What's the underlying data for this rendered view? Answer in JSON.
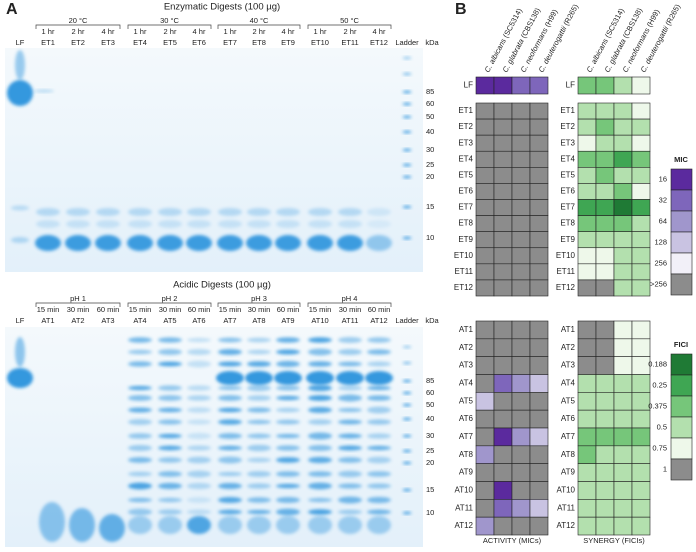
{
  "panel_a": {
    "label": "A",
    "gels": [
      {
        "title": "Enzymatic Digests (100 µg)",
        "lf": "LF",
        "ladder": "Ladder",
        "unit": "kDa",
        "groups": [
          {
            "label": "20 °C",
            "times": [
              "1 hr",
              "2 hr",
              "4 hr"
            ],
            "lanes": [
              "ET1",
              "ET2",
              "ET3"
            ]
          },
          {
            "label": "30 °C",
            "times": [
              "1 hr",
              "2 hr",
              "4 hr"
            ],
            "lanes": [
              "ET4",
              "ET5",
              "ET6"
            ]
          },
          {
            "label": "40 °C",
            "times": [
              "1 hr",
              "2 hr",
              "4 hr"
            ],
            "lanes": [
              "ET7",
              "ET8",
              "ET9"
            ]
          },
          {
            "label": "50 °C",
            "times": [
              "1 hr",
              "2 hr",
              "4 hr"
            ],
            "lanes": [
              "ET10",
              "ET11",
              "ET12"
            ]
          }
        ],
        "markers": [
          85,
          60,
          50,
          40,
          30,
          25,
          20,
          15,
          10
        ]
      },
      {
        "title": "Acidic Digests (100 µg)",
        "lf": "LF",
        "ladder": "Ladder",
        "unit": "kDa",
        "groups": [
          {
            "label": "pH 1",
            "times": [
              "15 min",
              "30 min",
              "60 min"
            ],
            "lanes": [
              "AT1",
              "AT2",
              "AT3"
            ]
          },
          {
            "label": "pH 2",
            "times": [
              "15 min",
              "30 min",
              "60 min"
            ],
            "lanes": [
              "AT4",
              "AT5",
              "AT6"
            ]
          },
          {
            "label": "pH 3",
            "times": [
              "15 min",
              "30 min",
              "60 min"
            ],
            "lanes": [
              "AT7",
              "AT8",
              "AT9"
            ]
          },
          {
            "label": "pH 4",
            "times": [
              "15 min",
              "30 min",
              "60 min"
            ],
            "lanes": [
              "AT10",
              "AT11",
              "AT12"
            ]
          }
        ],
        "markers": [
          85,
          60,
          50,
          40,
          30,
          25,
          20,
          15,
          10
        ]
      }
    ]
  },
  "panel_b": {
    "label": "B",
    "columns": [
      {
        "species": "C. albicans",
        "strain": "(SC5314)"
      },
      {
        "species": "C. glabrata",
        "strain": "(CBS138)"
      },
      {
        "species": "C. neoformans",
        "strain": "(H99)"
      },
      {
        "species": "C. deuterogattii",
        "strain": "(R265)"
      }
    ],
    "rows": [
      [
        "LF"
      ],
      [
        "ET1",
        "ET2",
        "ET3",
        "ET4",
        "ET5",
        "ET6",
        "ET7",
        "ET8",
        "ET9",
        "ET10",
        "ET11",
        "ET12"
      ],
      [
        "AT1",
        "AT2",
        "AT3",
        "AT4",
        "AT5",
        "AT6",
        "AT7",
        "AT8",
        "AT9",
        "AT10",
        "AT11",
        "AT12"
      ]
    ],
    "activity": {
      "footer": "ACTIVITY (MICs)",
      "values": [
        [
          [
            16,
            16,
            32,
            32
          ]
        ],
        [
          [
            ">256",
            ">256",
            ">256",
            ">256"
          ],
          [
            ">256",
            ">256",
            ">256",
            ">256"
          ],
          [
            ">256",
            ">256",
            ">256",
            ">256"
          ],
          [
            ">256",
            ">256",
            ">256",
            ">256"
          ],
          [
            ">256",
            ">256",
            ">256",
            ">256"
          ],
          [
            ">256",
            ">256",
            ">256",
            ">256"
          ],
          [
            ">256",
            ">256",
            ">256",
            ">256"
          ],
          [
            ">256",
            ">256",
            ">256",
            ">256"
          ],
          [
            ">256",
            ">256",
            ">256",
            ">256"
          ],
          [
            ">256",
            ">256",
            ">256",
            ">256"
          ],
          [
            ">256",
            ">256",
            ">256",
            ">256"
          ],
          [
            ">256",
            ">256",
            ">256",
            ">256"
          ]
        ],
        [
          [
            ">256",
            ">256",
            ">256",
            ">256"
          ],
          [
            ">256",
            ">256",
            ">256",
            ">256"
          ],
          [
            ">256",
            ">256",
            ">256",
            ">256"
          ],
          [
            ">256",
            32,
            64,
            128
          ],
          [
            128,
            ">256",
            ">256",
            ">256"
          ],
          [
            ">256",
            ">256",
            ">256",
            ">256"
          ],
          [
            ">256",
            16,
            64,
            128
          ],
          [
            64,
            ">256",
            ">256",
            ">256"
          ],
          [
            ">256",
            ">256",
            ">256",
            ">256"
          ],
          [
            ">256",
            16,
            ">256",
            ">256"
          ],
          [
            ">256",
            32,
            64,
            128
          ],
          [
            64,
            ">256",
            ">256",
            ">256"
          ]
        ]
      ]
    },
    "synergy": {
      "footer": "SYNERGY (FICIs)",
      "values": [
        [
          [
            0.375,
            0.375,
            0.5,
            0.75
          ]
        ],
        [
          [
            0.5,
            0.5,
            0.5,
            0.75
          ],
          [
            0.5,
            0.375,
            0.5,
            0.5
          ],
          [
            0.75,
            0.5,
            0.5,
            0.75
          ],
          [
            0.375,
            0.375,
            0.25,
            0.375
          ],
          [
            0.5,
            0.375,
            0.5,
            0.5
          ],
          [
            0.5,
            0.5,
            0.375,
            0.75
          ],
          [
            0.25,
            0.25,
            0.188,
            0.25
          ],
          [
            0.375,
            0.375,
            0.375,
            0.5
          ],
          [
            0.5,
            0.5,
            0.5,
            0.5
          ],
          [
            0.75,
            0.75,
            0.5,
            0.5
          ],
          [
            0.75,
            0.75,
            0.5,
            0.5
          ],
          [
            1,
            1,
            0.5,
            0.5
          ]
        ],
        [
          [
            1,
            1,
            0.75,
            0.75
          ],
          [
            1,
            1,
            0.75,
            0.75
          ],
          [
            1,
            1,
            0.75,
            0.75
          ],
          [
            0.5,
            0.5,
            0.5,
            0.5
          ],
          [
            0.5,
            0.5,
            0.5,
            0.5
          ],
          [
            0.5,
            0.5,
            0.5,
            0.5
          ],
          [
            0.375,
            0.375,
            0.375,
            0.375
          ],
          [
            0.375,
            0.5,
            0.5,
            0.5
          ],
          [
            0.5,
            0.5,
            0.5,
            0.5
          ],
          [
            0.5,
            0.5,
            0.5,
            0.5
          ],
          [
            0.5,
            0.5,
            0.5,
            0.5
          ],
          [
            0.5,
            0.5,
            0.5,
            0.5
          ]
        ]
      ]
    },
    "mic_legend": {
      "title": "MIC",
      "levels": [
        16,
        32,
        64,
        128,
        256,
        ">256"
      ],
      "colors": [
        "#5b2a9e",
        "#7e66bb",
        "#a096cc",
        "#c9c3e2",
        "#f2f0f8",
        "#8c8c8c"
      ]
    },
    "fici_legend": {
      "title": "FICI",
      "levels": [
        0.188,
        0.25,
        0.375,
        0.5,
        0.75,
        1
      ],
      "colors": [
        "#1f7a35",
        "#3fa653",
        "#76c67a",
        "#b3e0ae",
        "#eef8ea",
        "#8c8c8c"
      ]
    }
  }
}
